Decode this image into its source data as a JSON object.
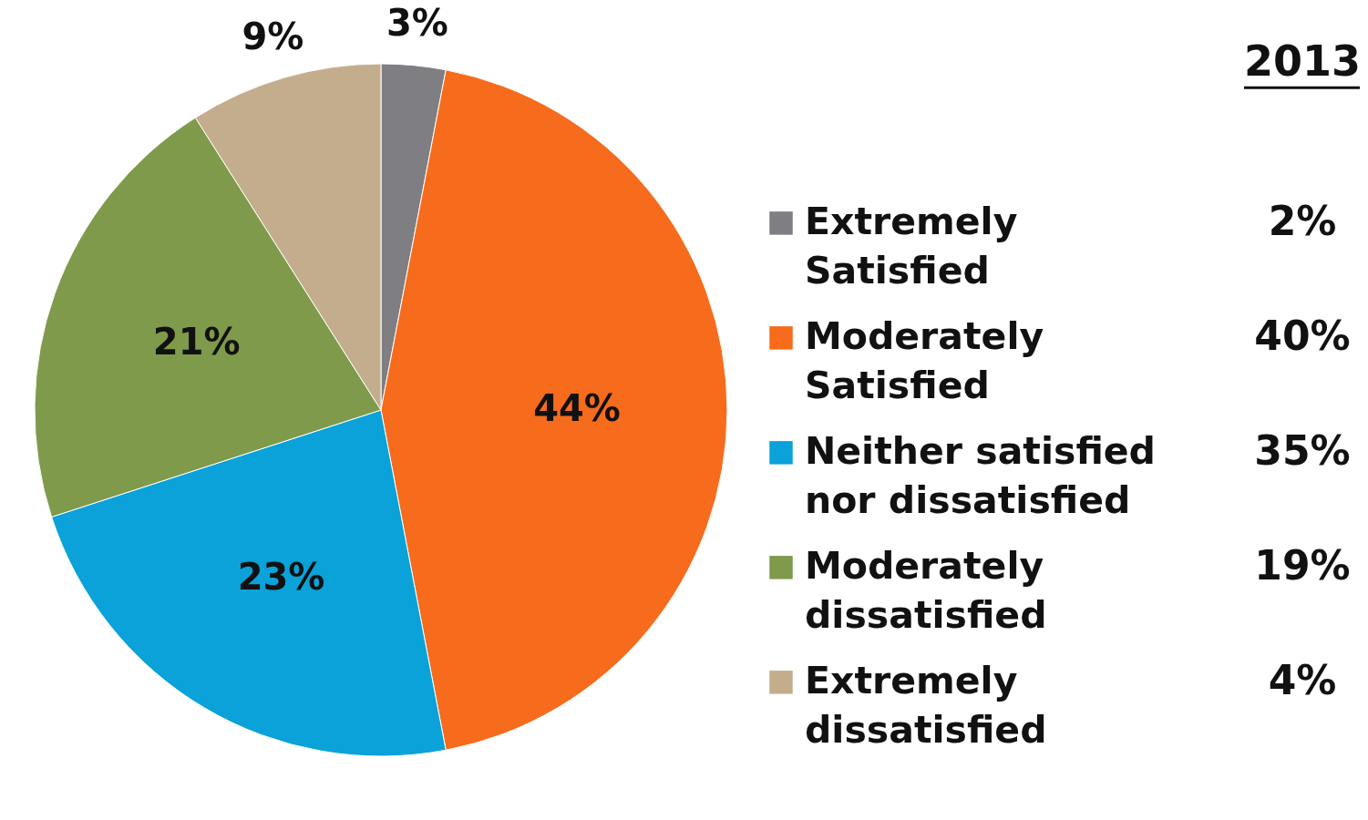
{
  "chart_data": {
    "type": "pie",
    "categories": [
      "Extremely Satisfied",
      "Moderately Satisfied",
      "Neither satisfied nor dissatisfied",
      "Moderately dissatisfied",
      "Extremely dissatisfied"
    ],
    "values": [
      3,
      44,
      23,
      21,
      9
    ],
    "colors": [
      "#7f7f83",
      "#f76b1c",
      "#0aa2d8",
      "#7f9a4b",
      "#c4ad8d"
    ],
    "value_labels": [
      "3%",
      "44%",
      "23%",
      "21%",
      "9%"
    ],
    "legend": "right",
    "annotations": [
      "2013",
      "2%",
      "40%",
      "35%",
      "19%",
      "4%"
    ]
  }
}
